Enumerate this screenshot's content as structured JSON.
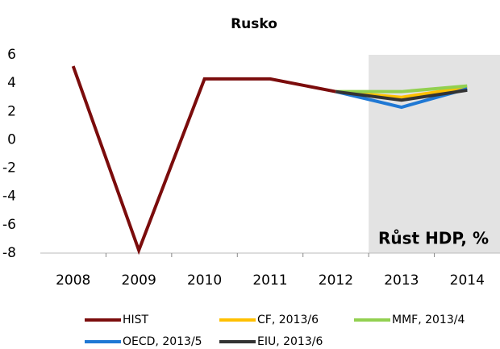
{
  "chart_data": {
    "type": "line",
    "title": "Rusko",
    "annotation": "Růst HDP, %",
    "categories": [
      "2008",
      "2009",
      "2010",
      "2011",
      "2012",
      "2013",
      "2014"
    ],
    "series": [
      {
        "name": "HIST",
        "color": "#7b0c0c",
        "values": [
          5.2,
          -7.8,
          4.3,
          4.3,
          3.4,
          null,
          null
        ]
      },
      {
        "name": "CF, 2013/6",
        "color": "#ffc000",
        "values": [
          null,
          null,
          null,
          null,
          3.4,
          3.0,
          3.7
        ]
      },
      {
        "name": "MMF, 2013/4",
        "color": "#92d050",
        "values": [
          null,
          null,
          null,
          null,
          3.4,
          3.4,
          3.8
        ]
      },
      {
        "name": "OECD, 2013/5",
        "color": "#1f78d4",
        "values": [
          null,
          null,
          null,
          null,
          3.4,
          2.3,
          3.6
        ]
      },
      {
        "name": "EIU, 2013/6",
        "color": "#333333",
        "values": [
          null,
          null,
          null,
          null,
          3.4,
          2.8,
          3.5
        ]
      }
    ],
    "ylim": [
      -8,
      6
    ],
    "yticks": [
      -8,
      -6,
      -4,
      -2,
      0,
      2,
      4,
      6
    ],
    "grid": false
  }
}
